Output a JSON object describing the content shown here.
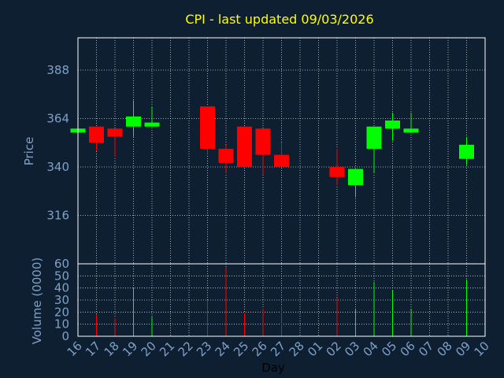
{
  "colors": {
    "background": "#0f1f32",
    "panel_border": "#ffffff",
    "grid": "#ffffff",
    "up": "#00ff00",
    "down": "#ff0000",
    "title": "#ffff00",
    "ticks": "#7fa0c6"
  },
  "chart_data": [
    {
      "type": "candlestick",
      "title": "CPI - last updated 09/03/2026",
      "ylabel": "Price",
      "ylim": [
        292,
        404
      ],
      "yticks": [
        316,
        340,
        364,
        388
      ],
      "grid": true,
      "candles": [
        {
          "x": "16",
          "open": 357,
          "close": 359,
          "high": 359,
          "low": 357
        },
        {
          "x": "17",
          "open": 360,
          "close": 352,
          "high": 360,
          "low": 348
        },
        {
          "x": "18",
          "open": 359,
          "close": 355,
          "high": 359,
          "low": 345
        },
        {
          "x": "19",
          "open": 360,
          "close": 365,
          "high": 373,
          "low": 355
        },
        {
          "x": "20",
          "open": 360,
          "close": 362,
          "high": 370,
          "low": 360
        },
        {
          "x": "23",
          "open": 370,
          "close": 349,
          "high": 370,
          "low": 346
        },
        {
          "x": "24",
          "open": 349,
          "close": 342,
          "high": 351,
          "low": 337
        },
        {
          "x": "25",
          "open": 360,
          "close": 340,
          "high": 360,
          "low": 340
        },
        {
          "x": "26",
          "open": 359,
          "close": 346,
          "high": 359,
          "low": 336
        },
        {
          "x": "27",
          "open": 346,
          "close": 340,
          "high": 352,
          "low": 340
        },
        {
          "x": "02",
          "open": 340,
          "close": 335,
          "high": 349,
          "low": 331
        },
        {
          "x": "03",
          "open": 331,
          "close": 339,
          "high": 339,
          "low": 325
        },
        {
          "x": "04",
          "open": 349,
          "close": 360,
          "high": 360,
          "low": 337
        },
        {
          "x": "05",
          "open": 359,
          "close": 363,
          "high": 367,
          "low": 353
        },
        {
          "x": "06",
          "open": 357,
          "close": 359,
          "high": 367,
          "low": 357
        },
        {
          "x": "09",
          "open": 344,
          "close": 351,
          "high": 355,
          "low": 341
        }
      ]
    },
    {
      "type": "bar",
      "ylabel": "Volume (0000)",
      "xlabel": "Day",
      "ylim": [
        0,
        60
      ],
      "yticks": [
        0,
        10,
        20,
        30,
        40,
        50,
        60
      ],
      "grid": true,
      "categories": [
        "16",
        "17",
        "18",
        "19",
        "20",
        "21",
        "22",
        "23",
        "24",
        "25",
        "26",
        "27",
        "28",
        "01",
        "02",
        "03",
        "04",
        "05",
        "06",
        "07",
        "08",
        "09",
        "10"
      ],
      "bars": [
        {
          "x": "17",
          "value": 18,
          "dir": "down"
        },
        {
          "x": "18",
          "value": 15,
          "dir": "down"
        },
        {
          "x": "19",
          "value": 40,
          "dir": "up"
        },
        {
          "x": "20",
          "value": 16,
          "dir": "up"
        },
        {
          "x": "23",
          "value": 30,
          "dir": "down"
        },
        {
          "x": "24",
          "value": 57,
          "dir": "down"
        },
        {
          "x": "25",
          "value": 19,
          "dir": "down"
        },
        {
          "x": "26",
          "value": 23,
          "dir": "down"
        },
        {
          "x": "27",
          "value": 25,
          "dir": "down"
        },
        {
          "x": "02",
          "value": 32,
          "dir": "down"
        },
        {
          "x": "03",
          "value": 23,
          "dir": "up"
        },
        {
          "x": "04",
          "value": 45,
          "dir": "up"
        },
        {
          "x": "05",
          "value": 38,
          "dir": "up"
        },
        {
          "x": "06",
          "value": 23,
          "dir": "up"
        },
        {
          "x": "09",
          "value": 47,
          "dir": "up"
        }
      ]
    }
  ]
}
